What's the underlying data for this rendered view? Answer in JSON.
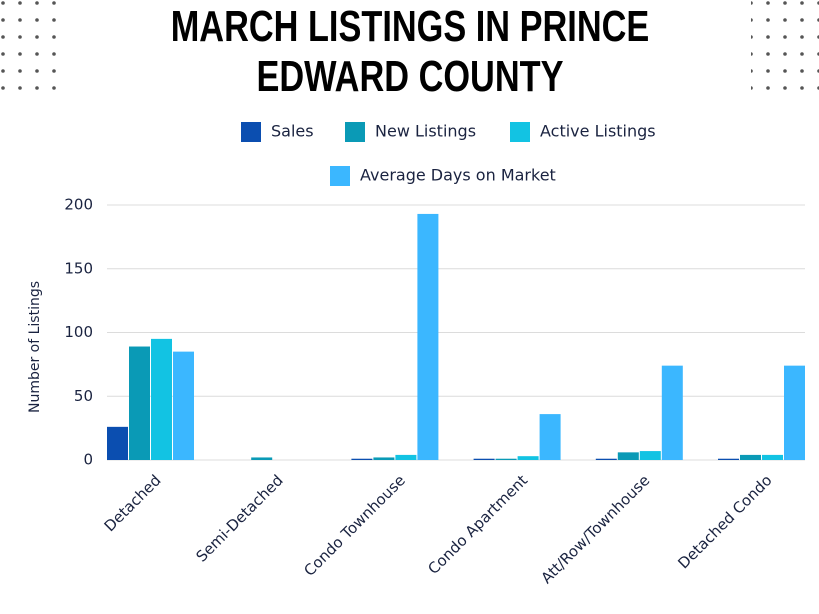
{
  "chart_data": {
    "type": "bar",
    "title": "MARCH LISTINGS IN PRINCE EDWARD COUNTY",
    "y_label": "Number of Listings",
    "categories": [
      "Detached",
      "Semi-Detached",
      "Condo Townhouse",
      "Condo Apartment",
      "Att/Row/Townhouse",
      "Detached Condo"
    ],
    "series": [
      {
        "name": "Sales",
        "color": "#0b4eb0",
        "values": [
          26,
          0,
          1,
          1,
          1,
          1
        ]
      },
      {
        "name": "New Listings",
        "color": "#0a9ab6",
        "values": [
          89,
          2,
          2,
          1,
          6,
          4
        ]
      },
      {
        "name": "Active Listings",
        "color": "#12c3e3",
        "values": [
          95,
          0,
          4,
          3,
          7,
          4
        ]
      },
      {
        "name": "Average Days on Market",
        "color": "#3bb7ff",
        "values": [
          85,
          0,
          193,
          36,
          74,
          74
        ]
      }
    ],
    "ylim": [
      0,
      200
    ],
    "yticks": [
      0,
      50,
      100,
      150,
      200
    ],
    "grid": true
  }
}
